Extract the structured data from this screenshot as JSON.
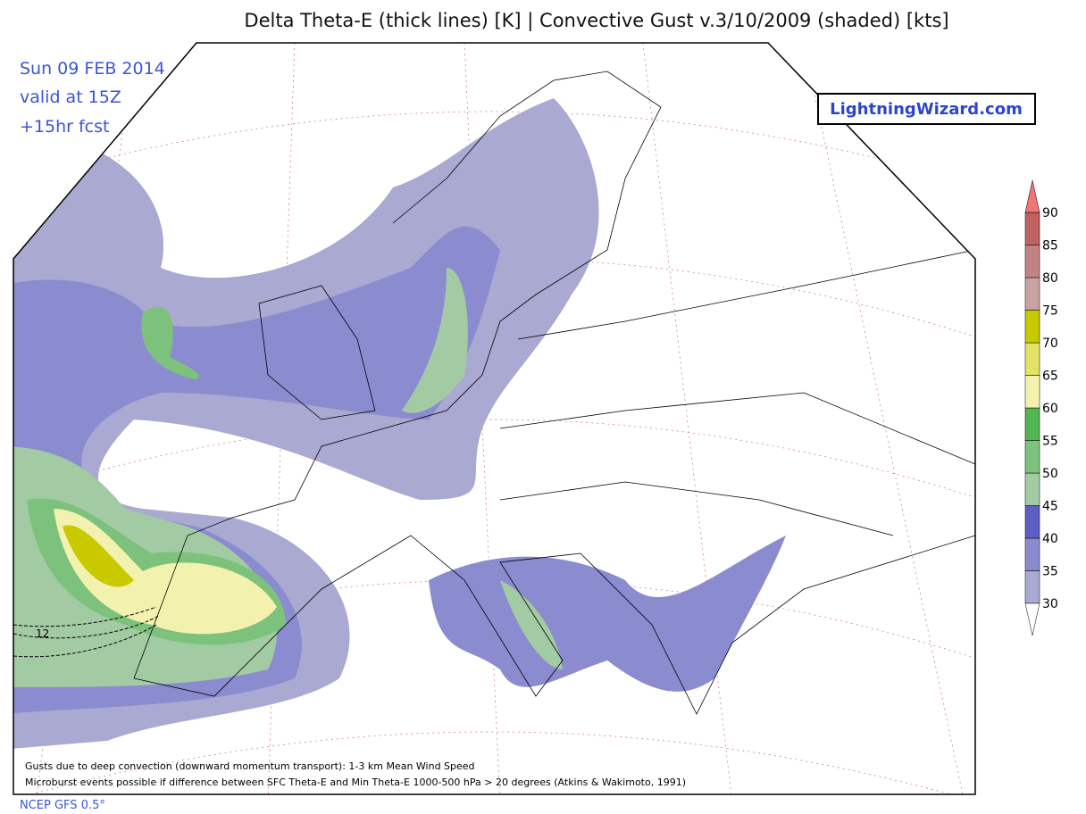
{
  "header": {
    "title": "Delta Theta-E (thick lines) [K]  |  Convective Gust v.3/10/2009 (shaded) [kts]"
  },
  "info": {
    "lines": [
      "Sun 09 FEB 2014",
      "valid at 15Z",
      "+15hr fcst"
    ]
  },
  "logo": "LightningWizard.com",
  "colorbar": {
    "ticks": [
      30,
      35,
      40,
      45,
      50,
      55,
      60,
      65,
      70,
      75,
      80,
      85,
      90
    ],
    "colors": [
      "#a9a9d2",
      "#8b8bd0",
      "#5d5dc6",
      "#a3cba3",
      "#7cc27c",
      "#52b652",
      "#f2f2ae",
      "#e3e366",
      "#c9c900",
      "#c9a3a3",
      "#c28383",
      "#c06262"
    ],
    "over_color": "#f27474",
    "under_color": "#ffffff"
  },
  "contour_label": "12",
  "footnotes": [
    "Gusts due to deep convection (downward momentum transport): 1-3 km Mean Wind Speed",
    "Microburst events possible if difference between SFC Theta-E and Min Theta-E 1000-500 hPa > 20 degrees (Atkins & Wakimoto, 1991)"
  ],
  "source": "NCEP GFS 0.5°"
}
